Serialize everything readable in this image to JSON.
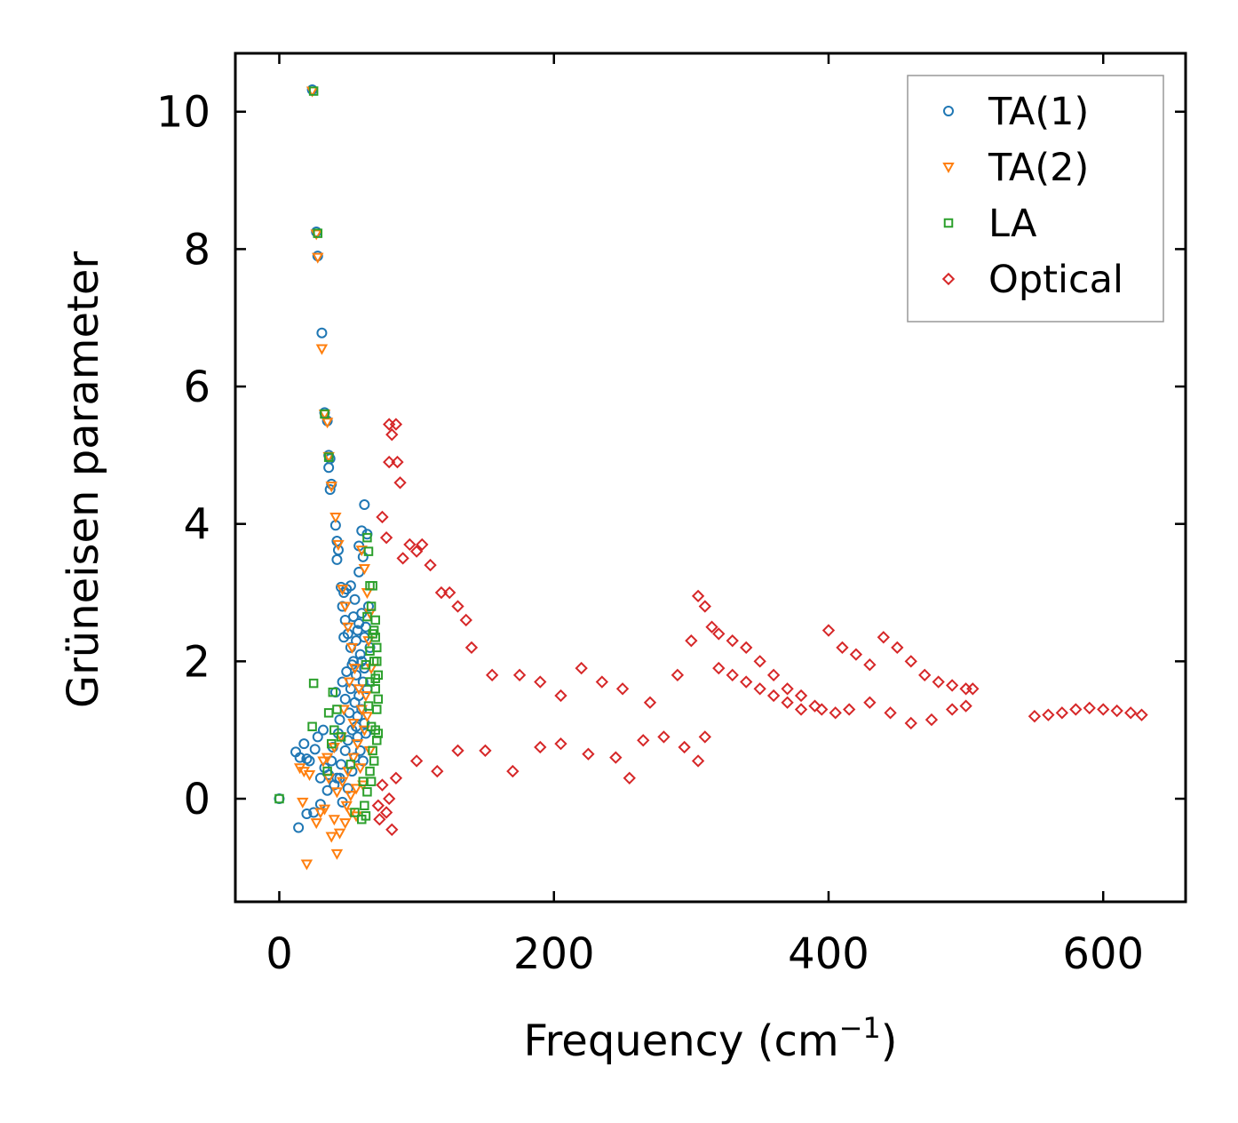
{
  "chart_data": {
    "type": "scatter",
    "title": "",
    "xlabel": "Frequency (cm",
    "xlabel_sup": "−1",
    "xlabel_close": ")",
    "ylabel": "Grüneisen parameter",
    "xlim": [
      -32,
      660
    ],
    "ylim": [
      -1.5,
      10.85
    ],
    "xticks": [
      0,
      200,
      400,
      600
    ],
    "xtick_labels": [
      "0",
      "200",
      "400",
      "600"
    ],
    "yticks": [
      0,
      2,
      4,
      6,
      8,
      10
    ],
    "ytick_labels": [
      "0",
      "2",
      "4",
      "6",
      "8",
      "10"
    ],
    "grid": false,
    "legend_position": "top-right",
    "series": [
      {
        "name": "TA(1)",
        "marker": "circle",
        "color": "#1f77b4",
        "points": [
          [
            0,
            0
          ],
          [
            24,
            10.32
          ],
          [
            27,
            8.25
          ],
          [
            28,
            7.9
          ],
          [
            31,
            6.78
          ],
          [
            33,
            5.62
          ],
          [
            35,
            5.5
          ],
          [
            36,
            5.0
          ],
          [
            37,
            4.95
          ],
          [
            36,
            4.82
          ],
          [
            38,
            4.58
          ],
          [
            37,
            4.5
          ],
          [
            41,
            3.98
          ],
          [
            42,
            3.75
          ],
          [
            43,
            3.62
          ],
          [
            42,
            3.48
          ],
          [
            45,
            3.08
          ],
          [
            47,
            3.0
          ],
          [
            46,
            2.8
          ],
          [
            48,
            2.6
          ],
          [
            50,
            2.4
          ],
          [
            52,
            2.2
          ],
          [
            54,
            2.0
          ],
          [
            56,
            1.8
          ],
          [
            52,
            1.6
          ],
          [
            55,
            1.4
          ],
          [
            57,
            1.2
          ],
          [
            53,
            1.0
          ],
          [
            50,
            0.85
          ],
          [
            48,
            0.7
          ],
          [
            45,
            0.5
          ],
          [
            42,
            0.3
          ],
          [
            40,
            0.2
          ],
          [
            35,
            0.12
          ],
          [
            30,
            -0.08
          ],
          [
            25,
            -0.2
          ],
          [
            20,
            -0.22
          ],
          [
            14,
            -0.42
          ],
          [
            12,
            0.68
          ],
          [
            15,
            0.6
          ],
          [
            20,
            0.58
          ],
          [
            18,
            0.8
          ],
          [
            22,
            0.55
          ],
          [
            28,
            0.9
          ],
          [
            32,
            1.0
          ],
          [
            58,
            3.68
          ],
          [
            60,
            3.9
          ],
          [
            61,
            3.52
          ],
          [
            62,
            4.28
          ],
          [
            58,
            3.3
          ],
          [
            55,
            2.9
          ],
          [
            60,
            2.7
          ],
          [
            63,
            2.5
          ],
          [
            56,
            2.3
          ],
          [
            59,
            2.1
          ],
          [
            62,
            1.9
          ],
          [
            61,
            1.7
          ],
          [
            58,
            1.5
          ],
          [
            60,
            1.3
          ],
          [
            62,
            1.1
          ],
          [
            57,
            0.9
          ],
          [
            55,
            0.6
          ],
          [
            53,
            0.4
          ],
          [
            50,
            0.15
          ],
          [
            46,
            -0.05
          ],
          [
            44,
            0.3
          ],
          [
            38,
            0.55
          ],
          [
            36,
            0.35
          ],
          [
            64,
            3.85
          ],
          [
            65,
            2.8
          ],
          [
            66,
            2.2
          ],
          [
            64,
            1.6
          ],
          [
            63,
            0.95
          ],
          [
            49,
            1.85
          ],
          [
            51,
            1.25
          ],
          [
            47,
            2.35
          ],
          [
            44,
            1.15
          ],
          [
            41,
            1.55
          ],
          [
            39,
            0.75
          ],
          [
            33,
            0.45
          ],
          [
            26,
            0.72
          ],
          [
            30,
            0.3
          ],
          [
            54,
            2.65
          ],
          [
            57,
            2.45
          ],
          [
            59,
            0.7
          ],
          [
            61,
            0.55
          ],
          [
            52,
            3.1
          ],
          [
            49,
            3.05
          ],
          [
            53,
            1.95
          ],
          [
            56,
            1.05
          ],
          [
            48,
            1.45
          ],
          [
            46,
            1.7
          ],
          [
            43,
            0.95
          ],
          [
            60,
            2.0
          ],
          [
            58,
            2.55
          ],
          [
            62,
            2.35
          ]
        ]
      },
      {
        "name": "TA(2)",
        "marker": "triangle-down",
        "color": "#ff7f0e",
        "points": [
          [
            24,
            10.3
          ],
          [
            27,
            8.22
          ],
          [
            28,
            7.88
          ],
          [
            31,
            6.55
          ],
          [
            33,
            5.6
          ],
          [
            35,
            5.48
          ],
          [
            36,
            4.98
          ],
          [
            38,
            4.55
          ],
          [
            41,
            4.1
          ],
          [
            43,
            3.7
          ],
          [
            46,
            3.05
          ],
          [
            48,
            2.8
          ],
          [
            50,
            2.5
          ],
          [
            53,
            2.2
          ],
          [
            55,
            1.9
          ],
          [
            58,
            1.6
          ],
          [
            60,
            1.3
          ],
          [
            62,
            1.0
          ],
          [
            57,
            0.8
          ],
          [
            54,
            0.6
          ],
          [
            50,
            0.4
          ],
          [
            46,
            0.25
          ],
          [
            42,
            0.1
          ],
          [
            40,
            -0.3
          ],
          [
            38,
            -0.55
          ],
          [
            44,
            -0.5
          ],
          [
            48,
            -0.35
          ],
          [
            52,
            -0.2
          ],
          [
            56,
            -0.25
          ],
          [
            42,
            -0.8
          ],
          [
            20,
            -0.95
          ],
          [
            27,
            -0.35
          ],
          [
            30,
            -0.2
          ],
          [
            18,
            0.4
          ],
          [
            22,
            0.35
          ],
          [
            15,
            0.45
          ],
          [
            32,
            0.55
          ],
          [
            35,
            0.6
          ],
          [
            40,
            0.75
          ],
          [
            45,
            0.9
          ],
          [
            60,
            3.62
          ],
          [
            62,
            3.35
          ],
          [
            64,
            3.0
          ],
          [
            66,
            2.7
          ],
          [
            65,
            2.3
          ],
          [
            67,
            1.9
          ],
          [
            63,
            1.5
          ],
          [
            61,
            0.2
          ],
          [
            59,
            0.45
          ],
          [
            56,
            0.15
          ],
          [
            52,
            0.05
          ],
          [
            49,
            -0.1
          ],
          [
            17,
            -0.05
          ],
          [
            36,
            0.3
          ],
          [
            33,
            -0.15
          ],
          [
            64,
            1.2
          ],
          [
            66,
            0.7
          ],
          [
            47,
            1.3
          ],
          [
            51,
            1.7
          ],
          [
            54,
            1.1
          ]
        ]
      },
      {
        "name": "LA",
        "marker": "square",
        "color": "#2ca02c",
        "points": [
          [
            0,
            0
          ],
          [
            25,
            10.3
          ],
          [
            28,
            8.23
          ],
          [
            33,
            5.6
          ],
          [
            36,
            4.97
          ],
          [
            40,
            1.0
          ],
          [
            39,
            1.55
          ],
          [
            42,
            1.3
          ],
          [
            25,
            1.68
          ],
          [
            24,
            1.05
          ],
          [
            36,
            1.25
          ],
          [
            38,
            0.8
          ],
          [
            35,
            0.4
          ],
          [
            45,
            0.9
          ],
          [
            52,
            0.5
          ],
          [
            55,
            -0.2
          ],
          [
            60,
            -0.3
          ],
          [
            62,
            -0.1
          ],
          [
            64,
            0.1
          ],
          [
            66,
            0.4
          ],
          [
            68,
            0.7
          ],
          [
            70,
            1.0
          ],
          [
            71,
            1.3
          ],
          [
            70,
            1.6
          ],
          [
            72,
            1.8
          ],
          [
            69,
            2.0
          ],
          [
            71,
            2.2
          ],
          [
            68,
            2.4
          ],
          [
            70,
            2.6
          ],
          [
            67,
            2.8
          ],
          [
            66,
            3.1
          ],
          [
            68,
            3.1
          ],
          [
            64,
            3.8
          ],
          [
            65,
            3.6
          ],
          [
            70,
            1.75
          ],
          [
            72,
            1.45
          ],
          [
            71,
            0.85
          ],
          [
            69,
            0.55
          ],
          [
            67,
            0.25
          ],
          [
            65,
            1.35
          ],
          [
            63,
            1.95
          ],
          [
            66,
            2.15
          ],
          [
            69,
            2.45
          ],
          [
            72,
            0.95
          ],
          [
            71,
            2.0
          ],
          [
            70,
            2.35
          ],
          [
            67,
            1.05
          ],
          [
            64,
            2.65
          ],
          [
            66,
            1.7
          ],
          [
            63,
            -0.25
          ],
          [
            61,
            0.25
          ]
        ]
      },
      {
        "name": "Optical",
        "marker": "diamond",
        "color": "#d62728",
        "points": [
          [
            72,
            -0.1
          ],
          [
            73,
            -0.3
          ],
          [
            78,
            -0.2
          ],
          [
            82,
            -0.45
          ],
          [
            80,
            5.45
          ],
          [
            82,
            5.3
          ],
          [
            85,
            5.45
          ],
          [
            86,
            4.9
          ],
          [
            88,
            4.6
          ],
          [
            80,
            4.9
          ],
          [
            75,
            4.1
          ],
          [
            78,
            3.8
          ],
          [
            90,
            3.5
          ],
          [
            95,
            3.7
          ],
          [
            100,
            3.6
          ],
          [
            104,
            3.7
          ],
          [
            110,
            3.4
          ],
          [
            118,
            3.0
          ],
          [
            124,
            3.0
          ],
          [
            130,
            2.8
          ],
          [
            136,
            2.6
          ],
          [
            75,
            0.2
          ],
          [
            80,
            0.0
          ],
          [
            85,
            0.3
          ],
          [
            100,
            0.55
          ],
          [
            115,
            0.4
          ],
          [
            130,
            0.7
          ],
          [
            150,
            0.7
          ],
          [
            170,
            0.4
          ],
          [
            190,
            0.75
          ],
          [
            205,
            0.8
          ],
          [
            225,
            0.65
          ],
          [
            245,
            0.6
          ],
          [
            255,
            0.3
          ],
          [
            265,
            0.85
          ],
          [
            280,
            0.9
          ],
          [
            295,
            0.75
          ],
          [
            305,
            0.55
          ],
          [
            310,
            0.9
          ],
          [
            140,
            2.2
          ],
          [
            155,
            1.8
          ],
          [
            175,
            1.8
          ],
          [
            190,
            1.7
          ],
          [
            205,
            1.5
          ],
          [
            220,
            1.9
          ],
          [
            235,
            1.7
          ],
          [
            250,
            1.6
          ],
          [
            270,
            1.4
          ],
          [
            290,
            1.8
          ],
          [
            300,
            2.3
          ],
          [
            305,
            2.95
          ],
          [
            310,
            2.8
          ],
          [
            315,
            2.5
          ],
          [
            320,
            2.4
          ],
          [
            330,
            2.3
          ],
          [
            340,
            2.2
          ],
          [
            350,
            2.0
          ],
          [
            360,
            1.8
          ],
          [
            370,
            1.6
          ],
          [
            380,
            1.5
          ],
          [
            390,
            1.35
          ],
          [
            395,
            1.3
          ],
          [
            320,
            1.9
          ],
          [
            330,
            1.8
          ],
          [
            340,
            1.7
          ],
          [
            350,
            1.6
          ],
          [
            360,
            1.5
          ],
          [
            370,
            1.4
          ],
          [
            380,
            1.3
          ],
          [
            400,
            2.45
          ],
          [
            410,
            2.2
          ],
          [
            420,
            2.1
          ],
          [
            430,
            1.95
          ],
          [
            440,
            2.35
          ],
          [
            450,
            2.2
          ],
          [
            460,
            2.0
          ],
          [
            470,
            1.8
          ],
          [
            480,
            1.7
          ],
          [
            490,
            1.65
          ],
          [
            500,
            1.6
          ],
          [
            505,
            1.6
          ],
          [
            405,
            1.25
          ],
          [
            415,
            1.3
          ],
          [
            430,
            1.4
          ],
          [
            445,
            1.25
          ],
          [
            460,
            1.1
          ],
          [
            475,
            1.15
          ],
          [
            490,
            1.3
          ],
          [
            500,
            1.35
          ],
          [
            550,
            1.2
          ],
          [
            560,
            1.22
          ],
          [
            570,
            1.25
          ],
          [
            580,
            1.3
          ],
          [
            590,
            1.32
          ],
          [
            600,
            1.3
          ],
          [
            610,
            1.28
          ],
          [
            620,
            1.25
          ],
          [
            628,
            1.22
          ]
        ]
      }
    ]
  }
}
